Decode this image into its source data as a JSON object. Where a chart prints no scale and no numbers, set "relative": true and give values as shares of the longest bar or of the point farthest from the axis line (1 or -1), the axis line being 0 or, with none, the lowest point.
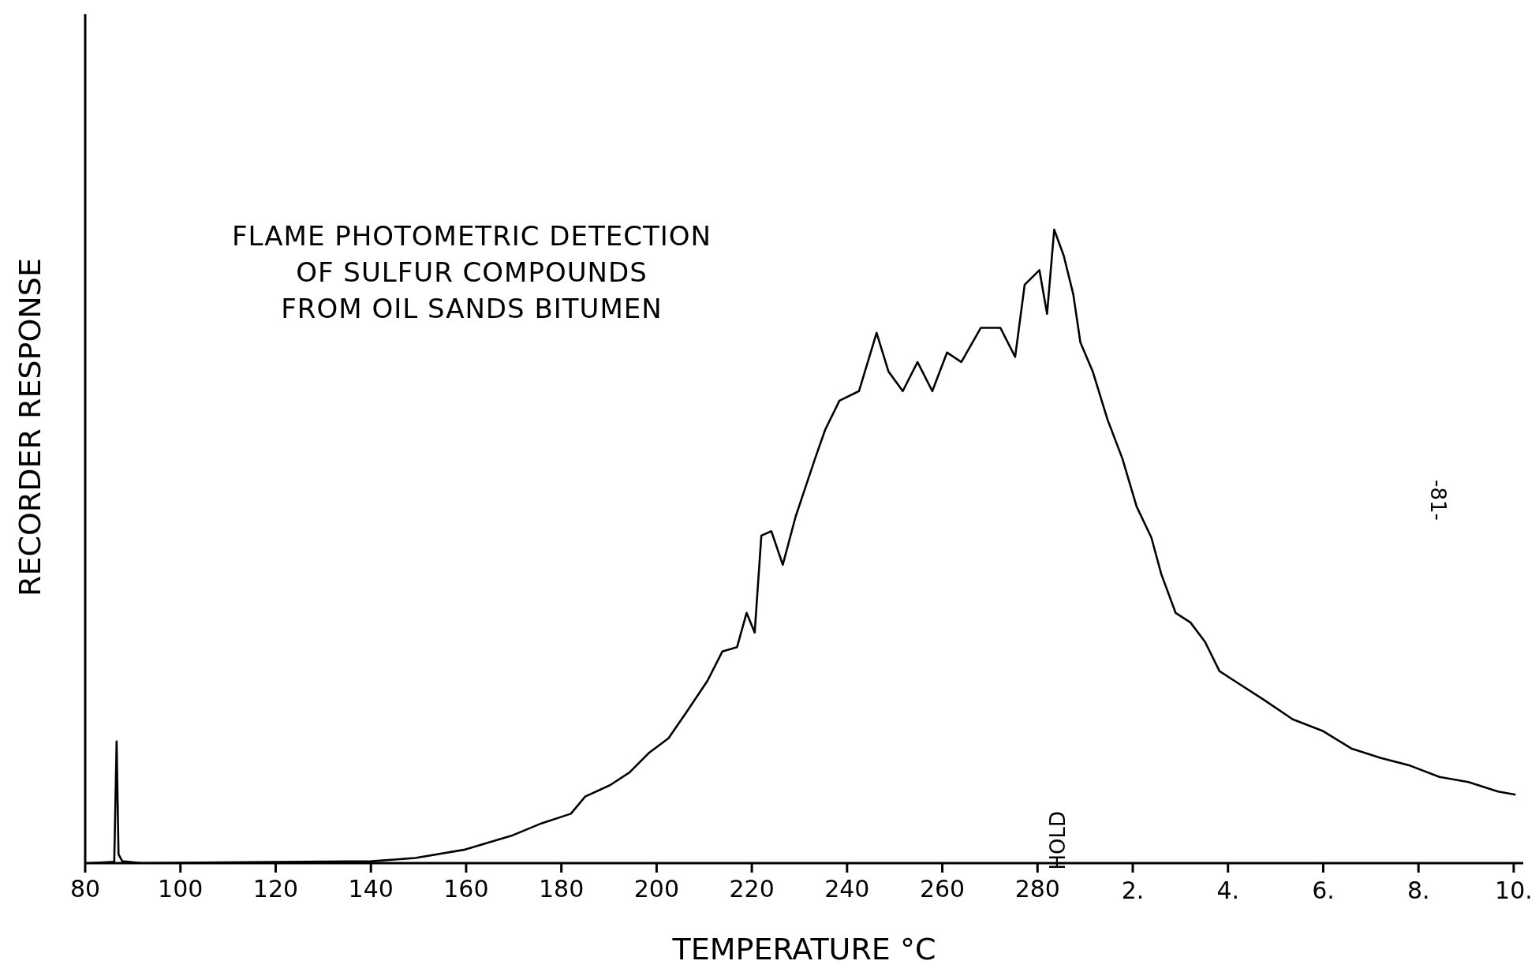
{
  "chart_data": {
    "type": "line",
    "title": "FLAME PHOTOMETRIC DETECTION\nOF SULFUR COMPOUNDS\nFROM OIL SANDS BITUMEN",
    "xlabel": "TEMPERATURE °C",
    "ylabel": "RECORDER RESPONSE",
    "relative": true,
    "tick_labels": "x",
    "marker": "none",
    "line_style": "solid",
    "xlim": [
      80,
      382
    ],
    "xticks": [
      80,
      100,
      120,
      140,
      160,
      180,
      200,
      220,
      240,
      260,
      280
    ],
    "x2lim": [
      -20,
      10.2
    ],
    "x2ticks": [
      {
        "value": 2,
        "label": "2."
      },
      {
        "value": 4,
        "label": "4."
      },
      {
        "value": 6,
        "label": "6."
      },
      {
        "value": 8,
        "label": "8."
      },
      {
        "value": 10,
        "label": "10."
      }
    ],
    "annotations": [
      "HOLD",
      "-81-"
    ],
    "series": [
      {
        "color": "#000000",
        "x": [
          80.8,
          86.1,
          86.6,
          87,
          87.8,
          91.9,
          140.2,
          149.3,
          159.5,
          169.8,
          175.9,
          182,
          185,
          190.2,
          194.3,
          198.4,
          202.5,
          206.6,
          210.7,
          213.8,
          216.9,
          218.9,
          220.6,
          222,
          224.1,
          226.5,
          229.2,
          233.3,
          235.4,
          238.4,
          242.5,
          246.2,
          248.7,
          251.7,
          254.8,
          257.9,
          261,
          264,
          268.1,
          272.2,
          275.3,
          277.3,
          280.4,
          282,
          283.5,
          285.5,
          287.5,
          289,
          291.6,
          294.7,
          297.8,
          300.8,
          303.9,
          306,
          309,
          312.1,
          315.2,
          318.2,
          321.3,
          327.5,
          333.6,
          339.8,
          345.9,
          352.1,
          358.2,
          364.4,
          370.5,
          376.7,
          380.4
        ],
        "values": [
          0,
          0.002,
          0.192,
          0.014,
          0.003,
          0,
          0.003,
          0.008,
          0.021,
          0.044,
          0.063,
          0.078,
          0.105,
          0.123,
          0.143,
          0.174,
          0.197,
          0.242,
          0.288,
          0.334,
          0.341,
          0.395,
          0.364,
          0.517,
          0.524,
          0.471,
          0.547,
          0.639,
          0.684,
          0.73,
          0.745,
          0.837,
          0.776,
          0.745,
          0.791,
          0.745,
          0.806,
          0.791,
          0.845,
          0.845,
          0.799,
          0.913,
          0.936,
          0.867,
          1,
          0.959,
          0.898,
          0.822,
          0.776,
          0.7,
          0.639,
          0.563,
          0.514,
          0.456,
          0.395,
          0.38,
          0.349,
          0.303,
          0.288,
          0.258,
          0.227,
          0.209,
          0.181,
          0.166,
          0.154,
          0.136,
          0.128,
          0.113,
          0.108
        ]
      }
    ]
  }
}
